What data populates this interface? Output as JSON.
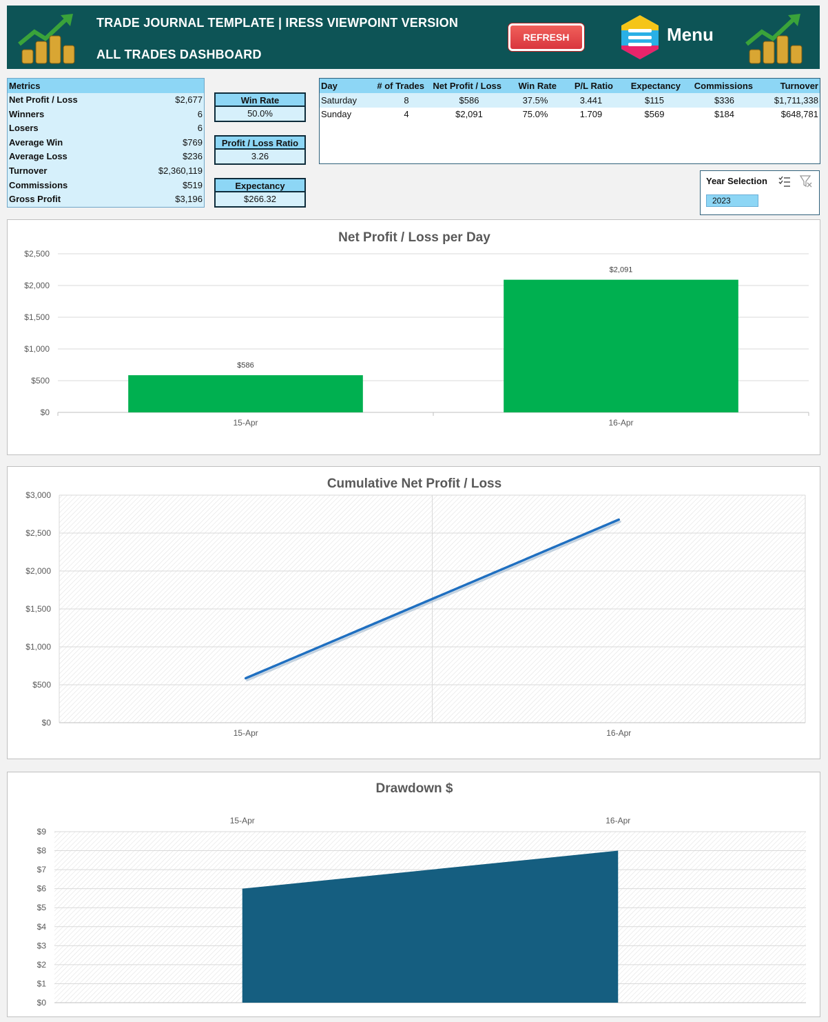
{
  "header": {
    "title": "TRADE JOURNAL TEMPLATE | IRESS VIEWPOINT VERSION",
    "subtitle": "ALL TRADES DASHBOARD",
    "refresh_label": "REFRESH",
    "menu_label": "Menu",
    "icons": [
      "coins-chart-icon",
      "menu-icon"
    ]
  },
  "metrics": {
    "header": "Metrics",
    "rows": [
      {
        "label": "Net Profit / Loss",
        "value": "$2,677"
      },
      {
        "label": "Winners",
        "value": "6"
      },
      {
        "label": "Losers",
        "value": "6"
      },
      {
        "label": "Average Win",
        "value": "$769"
      },
      {
        "label": "Average Loss",
        "value": "$236"
      },
      {
        "label": "Turnover",
        "value": "$2,360,119"
      },
      {
        "label": "Commissions",
        "value": "$519"
      },
      {
        "label": "Gross Profit",
        "value": "$3,196"
      }
    ]
  },
  "kpis": [
    {
      "label": "Win Rate",
      "value": "50.0%"
    },
    {
      "label": "Profit / Loss Ratio",
      "value": "3.26"
    },
    {
      "label": "Expectancy",
      "value": "$266.32"
    }
  ],
  "day_table": {
    "columns": [
      "Day",
      "# of Trades",
      "Net Profit / Loss",
      "Win Rate",
      "P/L Ratio",
      "Expectancy",
      "Commissions",
      "Turnover"
    ],
    "rows": [
      [
        "Saturday",
        "8",
        "$586",
        "37.5%",
        "3.441",
        "$115",
        "$336",
        "$1,711,338"
      ],
      [
        "Sunday",
        "4",
        "$2,091",
        "75.0%",
        "1.709",
        "$569",
        "$184",
        "$648,781"
      ]
    ]
  },
  "slicer": {
    "title": "Year Selection",
    "selected": "2023"
  },
  "chart_data": [
    {
      "type": "bar",
      "title": "Net Profit / Loss per Day",
      "categories": [
        "15-Apr",
        "16-Apr"
      ],
      "values": [
        586,
        2091
      ],
      "data_labels": [
        "$586",
        "$2,091"
      ],
      "yticks": [
        "$0",
        "$500",
        "$1,000",
        "$1,500",
        "$2,000",
        "$2,500"
      ],
      "ylim": [
        0,
        2500
      ],
      "color": "#00b050",
      "grid": true
    },
    {
      "type": "line",
      "title": "Cumulative Net Profit / Loss",
      "categories": [
        "15-Apr",
        "16-Apr"
      ],
      "values": [
        586,
        2677
      ],
      "yticks": [
        "$0",
        "$500",
        "$1,000",
        "$1,500",
        "$2,000",
        "$2,500",
        "$3,000"
      ],
      "ylim": [
        0,
        3000
      ],
      "color": "#1f6fc0",
      "grid": true
    },
    {
      "type": "area",
      "title": "Drawdown $",
      "categories": [
        "15-Apr",
        "16-Apr"
      ],
      "values": [
        6,
        8
      ],
      "yticks": [
        "$0",
        "$1",
        "$2",
        "$3",
        "$4",
        "$5",
        "$6",
        "$7",
        "$8",
        "$9"
      ],
      "ylim": [
        0,
        9
      ],
      "color": "#155e80",
      "grid": true,
      "xaxis_position": "top"
    }
  ]
}
